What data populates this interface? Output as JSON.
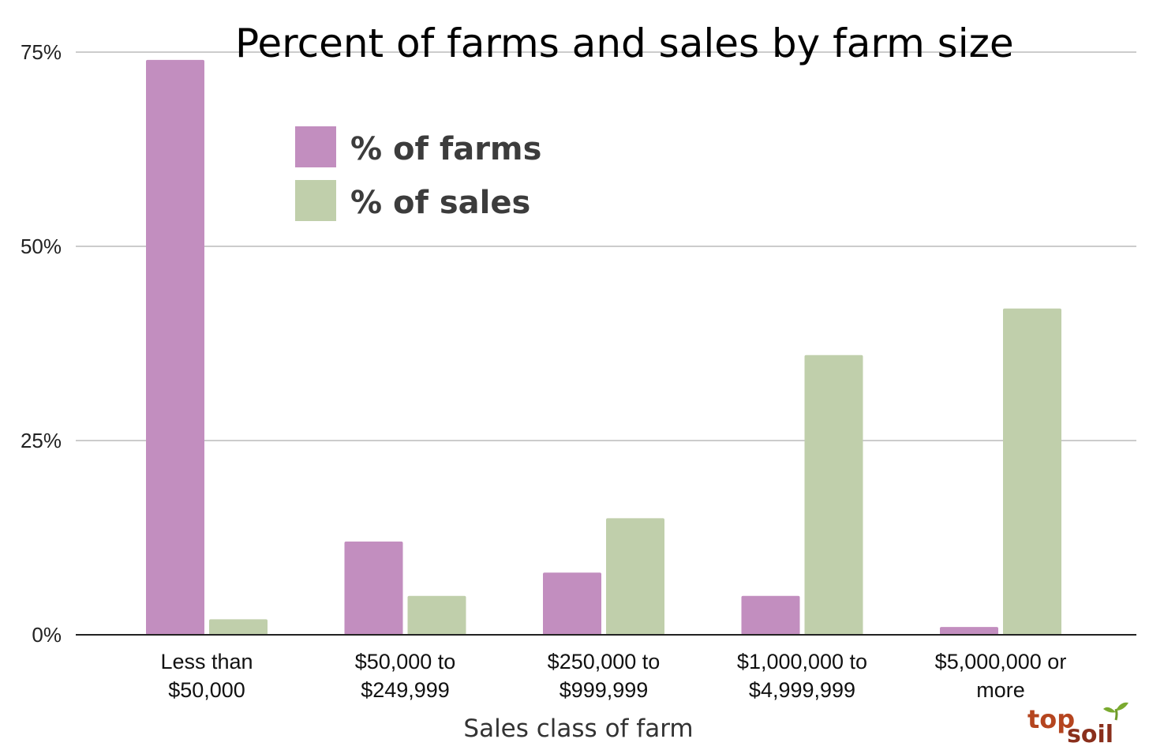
{
  "chart_data": {
    "type": "bar",
    "title": "Percent of farms and sales by farm size",
    "xlabel": "Sales class of farm",
    "ylabel": "",
    "ylim": [
      0,
      75
    ],
    "yticks": [
      "0%",
      "25%",
      "50%",
      "75%"
    ],
    "ytick_values": [
      0,
      25,
      50,
      75
    ],
    "grid": true,
    "legend_position": "top-left",
    "categories": [
      [
        "Less than",
        "$50,000"
      ],
      [
        "$50,000 to",
        "$249,999"
      ],
      [
        "$250,000 to",
        "$999,999"
      ],
      [
        "$1,000,000 to",
        "$4,999,999"
      ],
      [
        "$5,000,000 or",
        "more"
      ]
    ],
    "series": [
      {
        "name": "% of farms",
        "color": "#c28ebf",
        "values": [
          74,
          12,
          8,
          5,
          1
        ]
      },
      {
        "name": "% of sales",
        "color": "#c0cfab",
        "values": [
          2,
          5,
          15,
          36,
          42
        ]
      }
    ]
  },
  "logo": {
    "part1": "top",
    "part2": "soil",
    "icon": "sprout-icon"
  }
}
